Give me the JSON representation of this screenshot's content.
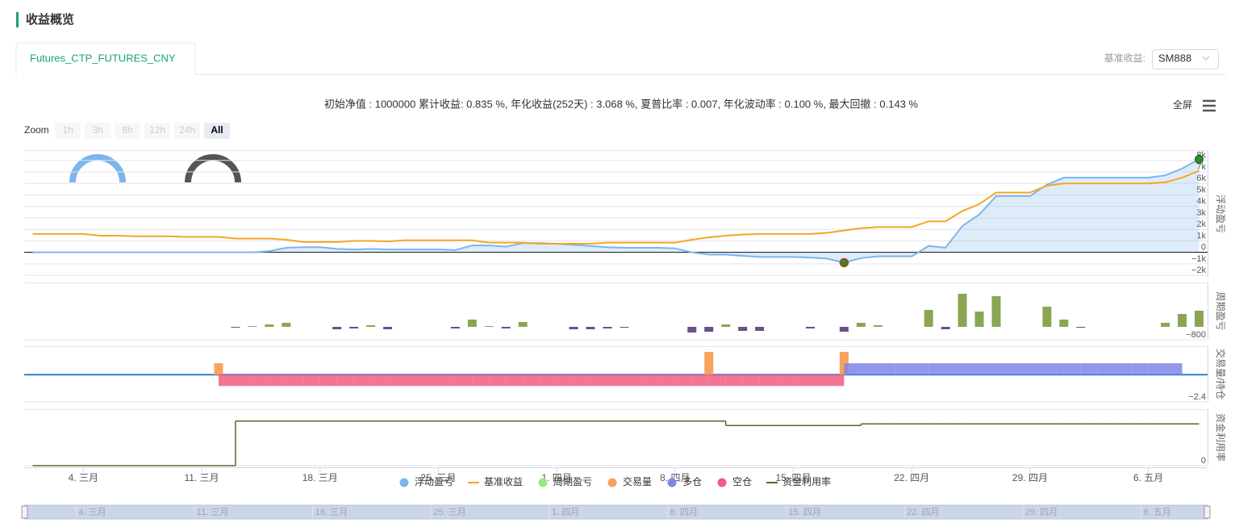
{
  "header": {
    "title": "收益概览"
  },
  "tab": "Futures_CTP_FUTURES_CNY",
  "benchmark": {
    "label": "基准收益:",
    "value": "SM888"
  },
  "summary": "初始净值 : 1000000 累计收益: 0.835 %, 年化收益(252天) : 3.068 %, 夏普比率 : 0.007, 年化波动率 : 0.100 %, 最大回撤 : 0.143 %",
  "fullscreen": "全屏",
  "zoom": {
    "label": "Zoom",
    "buttons": [
      "1h",
      "3h",
      "8h",
      "12h",
      "24h",
      "All"
    ],
    "selected": 5
  },
  "chart_data": {
    "type": "combo",
    "categories": [
      null,
      null,
      null,
      "4. 三月",
      null,
      null,
      null,
      null,
      null,
      null,
      "11. 三月",
      null,
      null,
      null,
      null,
      null,
      null,
      "18. 三月",
      null,
      null,
      null,
      null,
      null,
      null,
      "25. 三月",
      null,
      null,
      null,
      null,
      null,
      null,
      "1. 四月",
      null,
      null,
      null,
      null,
      null,
      null,
      "8. 四月",
      null,
      null,
      null,
      null,
      null,
      null,
      "15. 四月",
      null,
      null,
      null,
      null,
      null,
      null,
      "22. 四月",
      null,
      null,
      null,
      null,
      null,
      null,
      "29. 四月",
      null,
      null,
      null,
      null,
      null,
      null,
      "6. 五月",
      null,
      null,
      null
    ],
    "panels": [
      {
        "title": "浮动盈亏",
        "ylim": [
          -2200,
          8900
        ],
        "zero_line": "#000000",
        "yticks": [
          {
            "value": -2000,
            "label": "−2k"
          },
          {
            "value": -1000,
            "label": "−1k"
          },
          0,
          {
            "value": 1000,
            "label": "1k"
          },
          {
            "value": 2000,
            "label": "2k"
          },
          {
            "value": 3000,
            "label": "3k"
          },
          {
            "value": 4000,
            "label": "4k"
          },
          {
            "value": 5000,
            "label": "5k"
          },
          {
            "value": 6000,
            "label": "6k"
          },
          {
            "value": 7000,
            "label": "7k"
          },
          {
            "value": 8000,
            "label": "8k"
          }
        ]
      },
      {
        "title": "周期盈亏",
        "ylim": [
          -800,
          2750
        ],
        "yticks": [
          {
            "value": -800,
            "label": "−800"
          }
        ]
      },
      {
        "title": "交易量/持仓",
        "ylim": [
          -2.4,
          2.5
        ],
        "zero_line": "#2f7ed8",
        "yticks": [
          {
            "value": -2.4,
            "label": "−2.4"
          }
        ]
      },
      {
        "title": "资金利用率",
        "ylim": [
          0,
          1
        ],
        "yticks": [
          0
        ]
      }
    ],
    "series": [
      {
        "name": "浮动盈亏",
        "kind": "area",
        "panel": 0,
        "color": "#7cb5ec",
        "values": [
          0,
          0,
          0,
          0,
          0,
          0,
          0,
          0,
          0,
          0,
          0,
          0,
          0,
          0,
          100,
          400,
          450,
          450,
          300,
          250,
          300,
          250,
          250,
          250,
          250,
          200,
          600,
          600,
          500,
          800,
          800,
          750,
          650,
          550,
          450,
          400,
          400,
          400,
          350,
          0,
          -200,
          -200,
          -300,
          -400,
          -400,
          -400,
          -450,
          -550,
          -900,
          -500,
          -350,
          -350,
          -350,
          560,
          400,
          2300,
          3300,
          4900,
          4900,
          4900,
          5900,
          6500,
          6500,
          6500,
          6500,
          6500,
          6500,
          6700,
          7300,
          8100
        ]
      },
      {
        "name": "基准收益",
        "kind": "line",
        "panel": 0,
        "color": "#f5a623",
        "values": [
          1600,
          1600,
          1600,
          1600,
          1450,
          1450,
          1400,
          1400,
          1400,
          1350,
          1350,
          1350,
          1200,
          1200,
          1200,
          1100,
          900,
          900,
          900,
          1000,
          1000,
          950,
          1050,
          1050,
          1050,
          1050,
          1050,
          850,
          850,
          850,
          750,
          750,
          750,
          750,
          850,
          850,
          850,
          850,
          850,
          1100,
          1300,
          1450,
          1550,
          1600,
          1600,
          1600,
          1600,
          1700,
          1900,
          2100,
          2200,
          2200,
          2200,
          2700,
          2700,
          3600,
          4200,
          5200,
          5200,
          5200,
          5800,
          6000,
          6000,
          6000,
          6000,
          6000,
          6000,
          6100,
          6500,
          7100
        ]
      },
      {
        "name": "周期盈亏",
        "kind": "column",
        "panel": 1,
        "color": "#90ed7d",
        "positive_color": "#8aa653",
        "negative_color": "#6b4f86",
        "values": [
          0,
          0,
          0,
          0,
          0,
          0,
          0,
          0,
          0,
          0,
          0,
          0,
          -50,
          50,
          150,
          250,
          0,
          0,
          -150,
          -100,
          100,
          -150,
          0,
          0,
          0,
          -100,
          450,
          50,
          -100,
          300,
          0,
          0,
          -150,
          -150,
          -100,
          -50,
          0,
          0,
          0,
          -350,
          -300,
          150,
          -250,
          -250,
          0,
          0,
          -100,
          0,
          -300,
          250,
          100,
          0,
          0,
          1050,
          -150,
          2050,
          950,
          1900,
          0,
          0,
          1250,
          450,
          -50,
          0,
          0,
          0,
          0,
          250,
          800,
          1000
        ]
      },
      {
        "name": "交易量",
        "kind": "column",
        "panel": 2,
        "color": "#f7a35c",
        "values": [
          0,
          0,
          0,
          0,
          0,
          0,
          0,
          0,
          0,
          0,
          0,
          1,
          0,
          0,
          0,
          0,
          0,
          0,
          0,
          0,
          0,
          0,
          0,
          0,
          0,
          0,
          0,
          0,
          0,
          0,
          0,
          0,
          0,
          0,
          0,
          0,
          0,
          0,
          0,
          0,
          2,
          0,
          0,
          0,
          0,
          0,
          0,
          0,
          2,
          0,
          0,
          0,
          0,
          0,
          0,
          0,
          0,
          0,
          0,
          0,
          0,
          0,
          0,
          0,
          0,
          0,
          0,
          0,
          0,
          0
        ]
      },
      {
        "name": "多仓",
        "kind": "position",
        "panel": 2,
        "color": "#8085e9",
        "values": [
          0,
          0,
          0,
          0,
          0,
          0,
          0,
          0,
          0,
          0,
          0,
          0,
          0,
          0,
          0,
          0,
          0,
          0,
          0,
          0,
          0,
          0,
          0,
          0,
          0,
          0,
          0,
          0,
          0,
          0,
          0,
          0,
          0,
          0,
          0,
          0,
          0,
          0,
          0,
          0,
          0,
          0,
          0,
          0,
          0,
          0,
          0,
          0,
          1,
          1,
          1,
          1,
          1,
          1,
          1,
          1,
          1,
          1,
          1,
          1,
          1,
          1,
          1,
          1,
          1,
          1,
          1,
          1,
          0,
          0
        ]
      },
      {
        "name": "空仓",
        "kind": "position",
        "panel": 2,
        "color": "#f15c80",
        "values": [
          0,
          0,
          0,
          0,
          0,
          0,
          0,
          0,
          0,
          0,
          0,
          -1,
          -1,
          -1,
          -1,
          -1,
          -1,
          -1,
          -1,
          -1,
          -1,
          -1,
          -1,
          -1,
          -1,
          -1,
          -1,
          -1,
          -1,
          -1,
          -1,
          -1,
          -1,
          -1,
          -1,
          -1,
          -1,
          -1,
          -1,
          -1,
          -1,
          -1,
          -1,
          -1,
          -1,
          -1,
          -1,
          -1,
          0,
          0,
          0,
          0,
          0,
          0,
          0,
          0,
          0,
          0,
          0,
          0,
          0,
          0,
          0,
          0,
          0,
          0,
          0,
          0,
          0,
          0
        ]
      },
      {
        "name": "资金利用率",
        "kind": "step",
        "panel": 3,
        "color": "#6b5d2e",
        "values": [
          0,
          0,
          0,
          0,
          0,
          0,
          0,
          0,
          0,
          0,
          0,
          0,
          0.79,
          0.79,
          0.79,
          0.79,
          0.79,
          0.79,
          0.79,
          0.79,
          0.79,
          0.79,
          0.79,
          0.79,
          0.79,
          0.79,
          0.79,
          0.79,
          0.79,
          0.79,
          0.79,
          0.79,
          0.79,
          0.79,
          0.79,
          0.79,
          0.79,
          0.79,
          0.79,
          0.79,
          0.79,
          0.71,
          0.71,
          0.71,
          0.71,
          0.71,
          0.71,
          0.71,
          0.71,
          0.74,
          0.74,
          0.74,
          0.74,
          0.74,
          0.74,
          0.74,
          0.74,
          0.74,
          0.74,
          0.74,
          0.74,
          0.74,
          0.74,
          0.74,
          0.74,
          0.74,
          0.74,
          0.74,
          0.74,
          0.74
        ]
      }
    ]
  }
}
